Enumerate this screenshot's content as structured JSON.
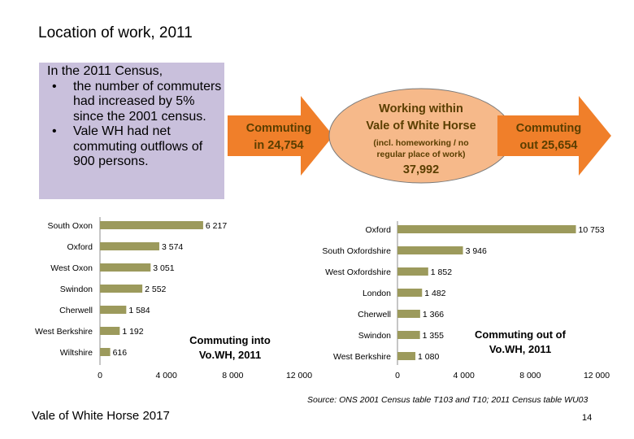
{
  "page_title": "Location of work, 2011",
  "summary": {
    "intro": "In the 2011 Census,",
    "bullets": [
      "the number of commuters had increased by 5% since the 2001 census.",
      "Vale WH had net commuting outflows of 900 persons."
    ]
  },
  "flow": {
    "commuting_in": {
      "line1": "Commuting",
      "line2": "in 24,754"
    },
    "working_within": {
      "line1": "Working within",
      "line2": "Vale of White Horse",
      "note1": "(incl. homeworking / no",
      "note2": "regular place of work)",
      "value": "37,992"
    },
    "commuting_out": {
      "line1": "Commuting",
      "line2": "out 25,654"
    },
    "colors": {
      "arrow": "#f07f2a",
      "ellipse": "#f6b98a"
    }
  },
  "chart_data": [
    {
      "type": "bar",
      "orientation": "horizontal",
      "title": "Commuting into Vo.WH, 2011",
      "categories": [
        "South Oxon",
        "Oxford",
        "West Oxon",
        "Swindon",
        "Cherwell",
        "West Berkshire",
        "Wiltshire"
      ],
      "values": [
        6217,
        3574,
        3051,
        2552,
        1584,
        1192,
        616
      ],
      "value_labels": [
        "6 217",
        "3 574",
        "3 051",
        "2 552",
        "1 584",
        "1 192",
        "616"
      ],
      "xlim": [
        0,
        12000
      ],
      "xticks": [
        0,
        4000,
        8000,
        12000
      ],
      "xtick_labels": [
        "0",
        "4 000",
        "8 000",
        "12 000"
      ],
      "bar_color": "#9c9a5c",
      "grid": false
    },
    {
      "type": "bar",
      "orientation": "horizontal",
      "title": "Commuting out of Vo.WH, 2011",
      "categories": [
        "Oxford",
        "South Oxfordshire",
        "West Oxfordshire",
        "London",
        "Cherwell",
        "Swindon",
        "West Berkshire"
      ],
      "values": [
        10753,
        3946,
        1852,
        1482,
        1366,
        1355,
        1080
      ],
      "value_labels": [
        "10 753",
        "3 946",
        "1 852",
        "1 482",
        "1 366",
        "1 355",
        "1 080"
      ],
      "xlim": [
        0,
        12000
      ],
      "xticks": [
        0,
        4000,
        8000,
        12000
      ],
      "xtick_labels": [
        "0",
        "4 000",
        "8 000",
        "12 000"
      ],
      "bar_color": "#9c9a5c",
      "grid": false
    }
  ],
  "source": "Source: ONS 2001 Census table T103 and T10; 2011 Census table WU03",
  "footer": "Vale of White Horse 2017",
  "page_number": "14"
}
